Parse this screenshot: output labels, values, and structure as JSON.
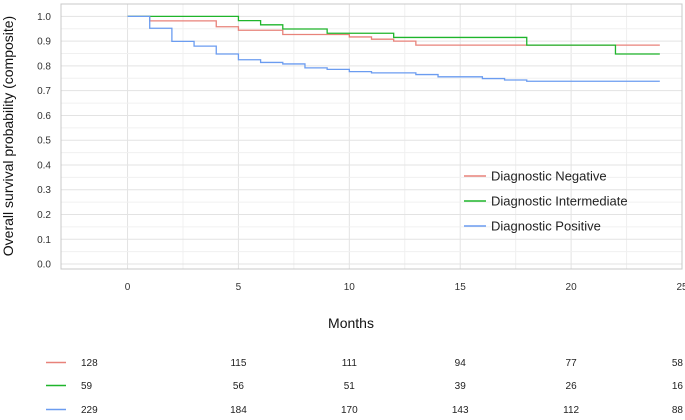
{
  "chart_data": {
    "type": "line",
    "subtype": "kaplan-meier-step",
    "xlabel": "Months",
    "ylabel": "Overall survival probability (composite)",
    "xlim": [
      -3,
      25
    ],
    "ylim": [
      -0.02,
      1.05
    ],
    "x_ticks": [
      0,
      5,
      10,
      15,
      20,
      25
    ],
    "y_ticks": [
      0.0,
      0.1,
      0.2,
      0.3,
      0.4,
      0.5,
      0.6,
      0.7,
      0.8,
      0.9,
      1.0
    ],
    "grid": true,
    "legend_position": "right",
    "series": [
      {
        "name": "Diagnostic Negative",
        "color": "#e8827a",
        "steps": [
          [
            0,
            1.0
          ],
          [
            1,
            0.982
          ],
          [
            4,
            0.958
          ],
          [
            5,
            0.944
          ],
          [
            7,
            0.927
          ],
          [
            10,
            0.917
          ],
          [
            11,
            0.908
          ],
          [
            12,
            0.9
          ],
          [
            13,
            0.884
          ],
          [
            24,
            0.884
          ]
        ]
      },
      {
        "name": "Diagnostic Intermediate",
        "color": "#1fb52b",
        "steps": [
          [
            0,
            1.0
          ],
          [
            5,
            0.983
          ],
          [
            6,
            0.966
          ],
          [
            7,
            0.949
          ],
          [
            9,
            0.932
          ],
          [
            12,
            0.915
          ],
          [
            18,
            0.884
          ],
          [
            22,
            0.848
          ],
          [
            24,
            0.848
          ]
        ]
      },
      {
        "name": "Diagnostic Positive",
        "color": "#6b9cf0",
        "steps": [
          [
            0,
            1.0
          ],
          [
            1,
            0.952
          ],
          [
            2,
            0.899
          ],
          [
            3,
            0.88
          ],
          [
            4,
            0.848
          ],
          [
            5,
            0.825
          ],
          [
            6,
            0.814
          ],
          [
            7,
            0.808
          ],
          [
            8,
            0.792
          ],
          [
            9,
            0.786
          ],
          [
            10,
            0.777
          ],
          [
            11,
            0.772
          ],
          [
            13,
            0.765
          ],
          [
            14,
            0.756
          ],
          [
            16,
            0.749
          ],
          [
            17,
            0.743
          ],
          [
            18,
            0.738
          ],
          [
            24,
            0.738
          ]
        ]
      }
    ],
    "risk_table": {
      "times": [
        0,
        5,
        10,
        15,
        20,
        25
      ],
      "rows": [
        {
          "series": "Diagnostic Negative",
          "counts": [
            "128",
            "115",
            "111",
            "94",
            "77",
            "58"
          ]
        },
        {
          "series": "Diagnostic Intermediate",
          "counts": [
            "59",
            "56",
            "51",
            "39",
            "26",
            "16"
          ]
        },
        {
          "series": "Diagnostic Positive",
          "counts": [
            "229",
            "184",
            "170",
            "143",
            "112",
            "88"
          ]
        }
      ]
    }
  }
}
